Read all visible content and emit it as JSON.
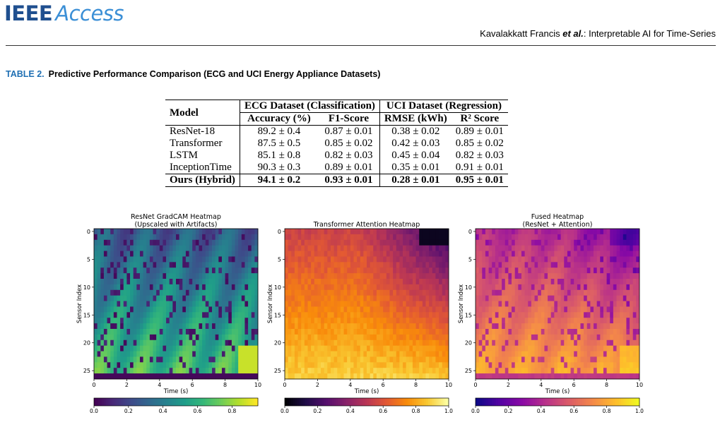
{
  "header": {
    "logo_ieee": "IEEE",
    "logo_access": "Access",
    "authors": "Kavalakkatt Francis",
    "etal": "et al.",
    "title_sep": ": ",
    "article_title": "Interpretable AI for Time-Series"
  },
  "caption": {
    "label": "TABLE 2.",
    "text": "Predictive Performance Comparison (ECG and UCI Energy Appliance Datasets)"
  },
  "table": {
    "model_header": "Model",
    "group1": "ECG Dataset (Classification)",
    "group2": "UCI Dataset (Regression)",
    "cols": [
      "Accuracy (%)",
      "F1-Score",
      "RMSE (kWh)",
      "R² Score"
    ],
    "rows": [
      {
        "model": "ResNet-18",
        "acc": "89.2 ± 0.4",
        "f1": "0.87 ± 0.01",
        "rmse": "0.38 ± 0.02",
        "r2": "0.89 ± 0.01"
      },
      {
        "model": "Transformer",
        "acc": "87.5 ± 0.5",
        "f1": "0.85 ± 0.02",
        "rmse": "0.42 ± 0.03",
        "r2": "0.85 ± 0.02"
      },
      {
        "model": "LSTM",
        "acc": "85.1 ± 0.8",
        "f1": "0.82 ± 0.03",
        "rmse": "0.45 ± 0.04",
        "r2": "0.82 ± 0.03"
      },
      {
        "model": "InceptionTime",
        "acc": "90.3 ± 0.3",
        "f1": "0.89 ± 0.01",
        "rmse": "0.35 ± 0.01",
        "r2": "0.91 ± 0.01"
      },
      {
        "model": "Ours (Hybrid)",
        "acc": "94.1 ± 0.2",
        "f1": "0.93 ± 0.01",
        "rmse": "0.28 ± 0.01",
        "r2": "0.95 ± 0.01"
      }
    ]
  },
  "chart_data": [
    {
      "type": "heatmap",
      "title": "ResNet GradCAM Heatmap\n(Upscaled with Artifacts)",
      "xlabel": "Time (s)",
      "ylabel": "Sensor Index",
      "xlim": [
        0,
        10
      ],
      "ylim": [
        27,
        0
      ],
      "xticks": [
        "0",
        "2",
        "4",
        "6",
        "8",
        "10"
      ],
      "yticks": [
        "0",
        "5",
        "10",
        "15",
        "20",
        "25"
      ],
      "colormap": "viridis",
      "colorbar_range": [
        0,
        0.95
      ],
      "colorbar_ticks": [
        "0.0",
        "0.2",
        "0.4",
        "0.6",
        "0.8"
      ]
    },
    {
      "type": "heatmap",
      "title": "Transformer Attention Heatmap",
      "xlabel": "Time (s)",
      "ylabel": "Sensor Index",
      "xlim": [
        0,
        10
      ],
      "ylim": [
        27,
        0
      ],
      "xticks": [
        "0",
        "2",
        "4",
        "6",
        "8",
        "10"
      ],
      "yticks": [
        "0",
        "5",
        "10",
        "15",
        "20",
        "25"
      ],
      "colormap": "inferno",
      "colorbar_range": [
        0,
        1
      ],
      "colorbar_ticks": [
        "0.0",
        "0.2",
        "0.4",
        "0.6",
        "0.8",
        "1.0"
      ]
    },
    {
      "type": "heatmap",
      "title": "Fused Heatmap\n(ResNet + Attention)",
      "xlabel": "Time (s)",
      "ylabel": "Sensor Index",
      "xlim": [
        0,
        10
      ],
      "ylim": [
        27,
        0
      ],
      "xticks": [
        "0",
        "2",
        "4",
        "6",
        "8",
        "10"
      ],
      "yticks": [
        "0",
        "5",
        "10",
        "15",
        "20",
        "25"
      ],
      "colormap": "plasma",
      "colorbar_range": [
        0,
        1
      ],
      "colorbar_ticks": [
        "0.0",
        "0.2",
        "0.4",
        "0.6",
        "0.8",
        "1.0"
      ]
    }
  ]
}
